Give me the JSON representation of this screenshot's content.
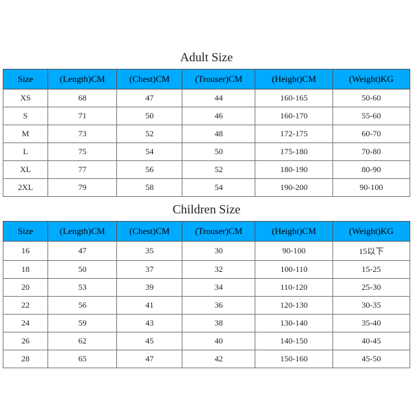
{
  "adult": {
    "title": "Adult Size",
    "columns": [
      "Size",
      "(Length)CM",
      "(Chest)CM",
      "(Trouser)CM",
      "(Height)CM",
      "(Weight)KG"
    ],
    "rows": [
      [
        "XS",
        "68",
        "47",
        "44",
        "160-165",
        "50-60"
      ],
      [
        "S",
        "71",
        "50",
        "46",
        "160-170",
        "55-60"
      ],
      [
        "M",
        "73",
        "52",
        "48",
        "172-175",
        "60-70"
      ],
      [
        "L",
        "75",
        "54",
        "50",
        "175-180",
        "70-80"
      ],
      [
        "XL",
        "77",
        "56",
        "52",
        "180-190",
        "80-90"
      ],
      [
        "2XL",
        "79",
        "58",
        "54",
        "190-200",
        "90-100"
      ]
    ],
    "header_bg": "#00aaff",
    "border_color": "#555555",
    "title_fontsize": 18,
    "header_fontsize": 13,
    "cell_fontsize": 12
  },
  "children": {
    "title": "Children Size",
    "columns": [
      "Size",
      "(Length)CM",
      "(Chest)CM",
      "(Trouser)CM",
      "(Height)CM",
      "(Weight)KG"
    ],
    "rows": [
      [
        "16",
        "47",
        "35",
        "30",
        "90-100",
        "15以下"
      ],
      [
        "18",
        "50",
        "37",
        "32",
        "100-110",
        "15-25"
      ],
      [
        "20",
        "53",
        "39",
        "34",
        "110-120",
        "25-30"
      ],
      [
        "22",
        "56",
        "41",
        "36",
        "120-130",
        "30-35"
      ],
      [
        "24",
        "59",
        "43",
        "38",
        "130-140",
        "35-40"
      ],
      [
        "26",
        "62",
        "45",
        "40",
        "140-150",
        "40-45"
      ],
      [
        "28",
        "65",
        "47",
        "42",
        "150-160",
        "45-50"
      ]
    ],
    "header_bg": "#00aaff",
    "border_color": "#555555",
    "title_fontsize": 18,
    "header_fontsize": 13,
    "cell_fontsize": 12
  }
}
